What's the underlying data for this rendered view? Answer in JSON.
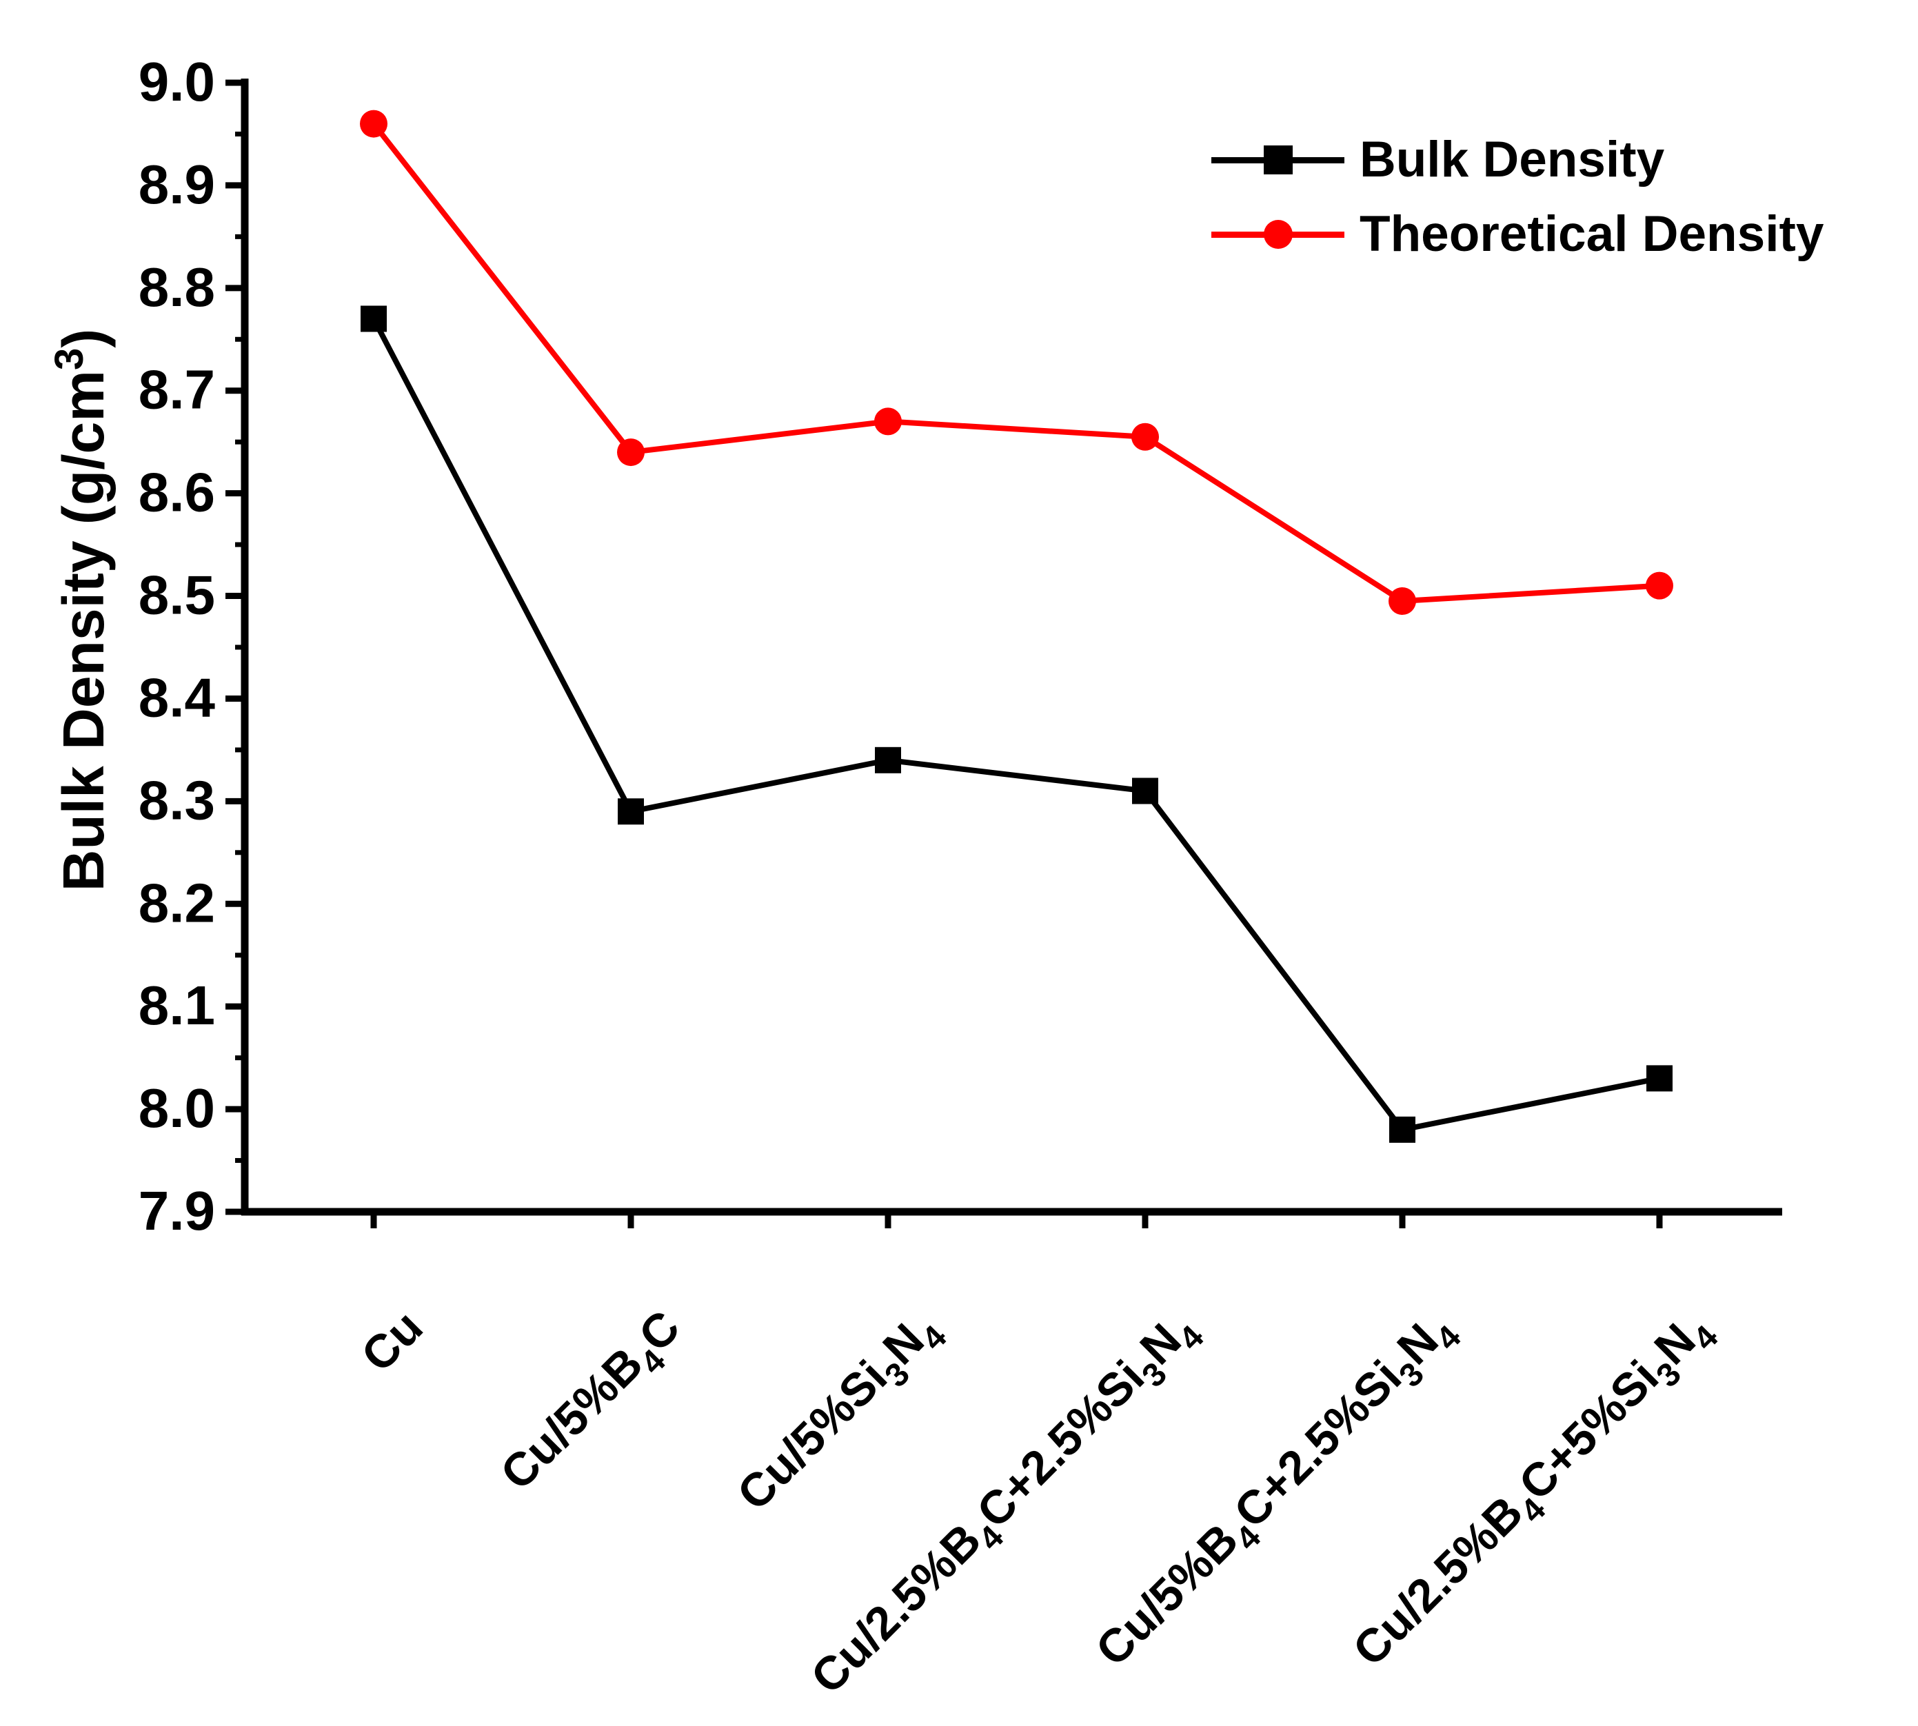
{
  "chart_data": {
    "type": "line",
    "title": "",
    "ylabel": "Bulk Density (g/cm3)",
    "ylabel_segments": [
      {
        "t": "Bulk Density (g/cm"
      },
      {
        "t": "3",
        "s": "sup"
      },
      {
        "t": ")"
      }
    ],
    "ylim": [
      7.9,
      9.0
    ],
    "ytick_step": 0.1,
    "ytick_minor_step": 0.05,
    "ytick_labels": [
      "7.9",
      "8.0",
      "8.1",
      "8.2",
      "8.3",
      "8.4",
      "8.5",
      "8.6",
      "8.7",
      "8.8",
      "8.9",
      "9.0"
    ],
    "grid": false,
    "legend_position": "top-right",
    "categories": [
      "Cu",
      "Cu/5%B4C",
      "Cu/5%Si3N4",
      "Cu/2.5%B4C+2.5%Si3N4",
      "Cu/5%B4C+2.5%Si3N4",
      "Cu/2.5%B4C+5%Si3N4"
    ],
    "categories_rich": [
      [
        {
          "t": "Cu"
        }
      ],
      [
        {
          "t": "Cu/5%B"
        },
        {
          "t": "4",
          "s": "sub"
        },
        {
          "t": "C"
        }
      ],
      [
        {
          "t": "Cu/5%Si"
        },
        {
          "t": "3",
          "s": "sub"
        },
        {
          "t": "N"
        },
        {
          "t": "4",
          "s": "sub"
        }
      ],
      [
        {
          "t": "Cu/2.5%B"
        },
        {
          "t": "4",
          "s": "sub"
        },
        {
          "t": "C+2.5%Si"
        },
        {
          "t": "3",
          "s": "sub"
        },
        {
          "t": "N"
        },
        {
          "t": "4",
          "s": "sub"
        }
      ],
      [
        {
          "t": "Cu/5%B"
        },
        {
          "t": "4",
          "s": "sub"
        },
        {
          "t": "C+2.5%Si"
        },
        {
          "t": "3",
          "s": "sub"
        },
        {
          "t": "N"
        },
        {
          "t": "4",
          "s": "sub"
        }
      ],
      [
        {
          "t": "Cu/2.5%B"
        },
        {
          "t": "4",
          "s": "sub"
        },
        {
          "t": "C+5%Si"
        },
        {
          "t": "3",
          "s": "sub"
        },
        {
          "t": "N"
        },
        {
          "t": "4",
          "s": "sub"
        }
      ]
    ],
    "series": [
      {
        "name": "Bulk Density",
        "marker": "square",
        "color": "#000000",
        "values": [
          8.77,
          8.29,
          8.34,
          8.31,
          7.98,
          8.03
        ]
      },
      {
        "name": "Theoretical Density",
        "marker": "circle",
        "color": "#ff0000",
        "values": [
          8.96,
          8.64,
          8.67,
          8.655,
          8.495,
          8.51
        ]
      }
    ]
  },
  "colors": {
    "background": "#ffffff",
    "axis": "#000000",
    "bulk_series": "#000000",
    "theoretical_series": "#ff0000"
  }
}
